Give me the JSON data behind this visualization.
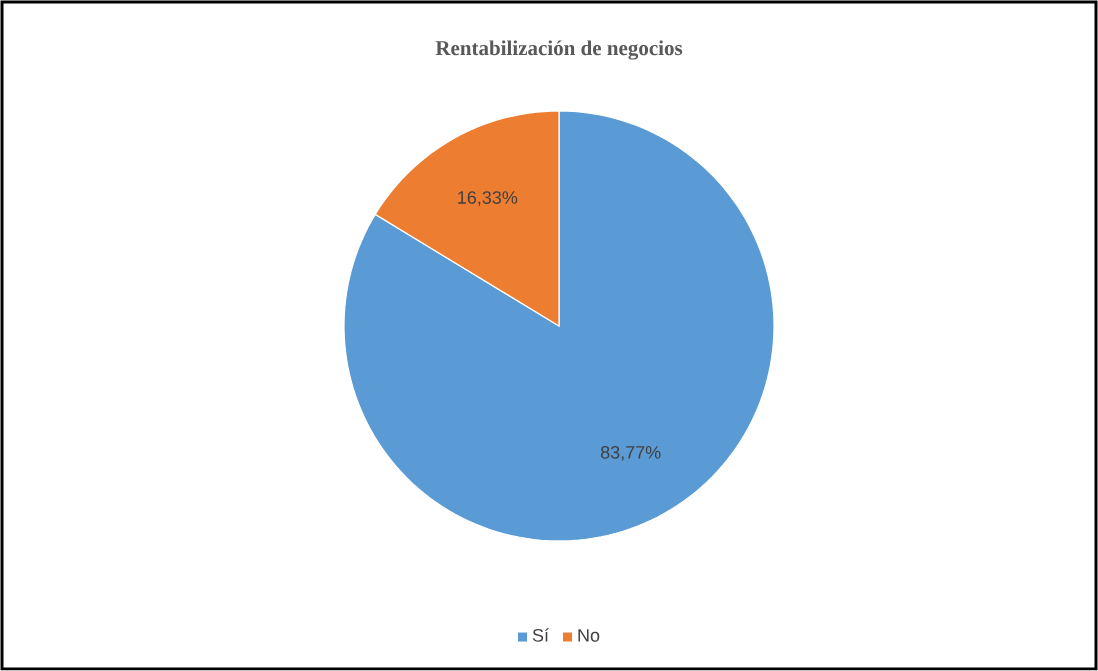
{
  "chart_data": {
    "type": "pie",
    "title": "Rentabilización de negocios",
    "categories": [
      "Sí",
      "No"
    ],
    "values": [
      83.77,
      16.33
    ],
    "colors": [
      "#5b9bd5",
      "#ed7d31"
    ],
    "value_labels": [
      "83,77%",
      "16,33%"
    ],
    "legend": "bottom"
  }
}
